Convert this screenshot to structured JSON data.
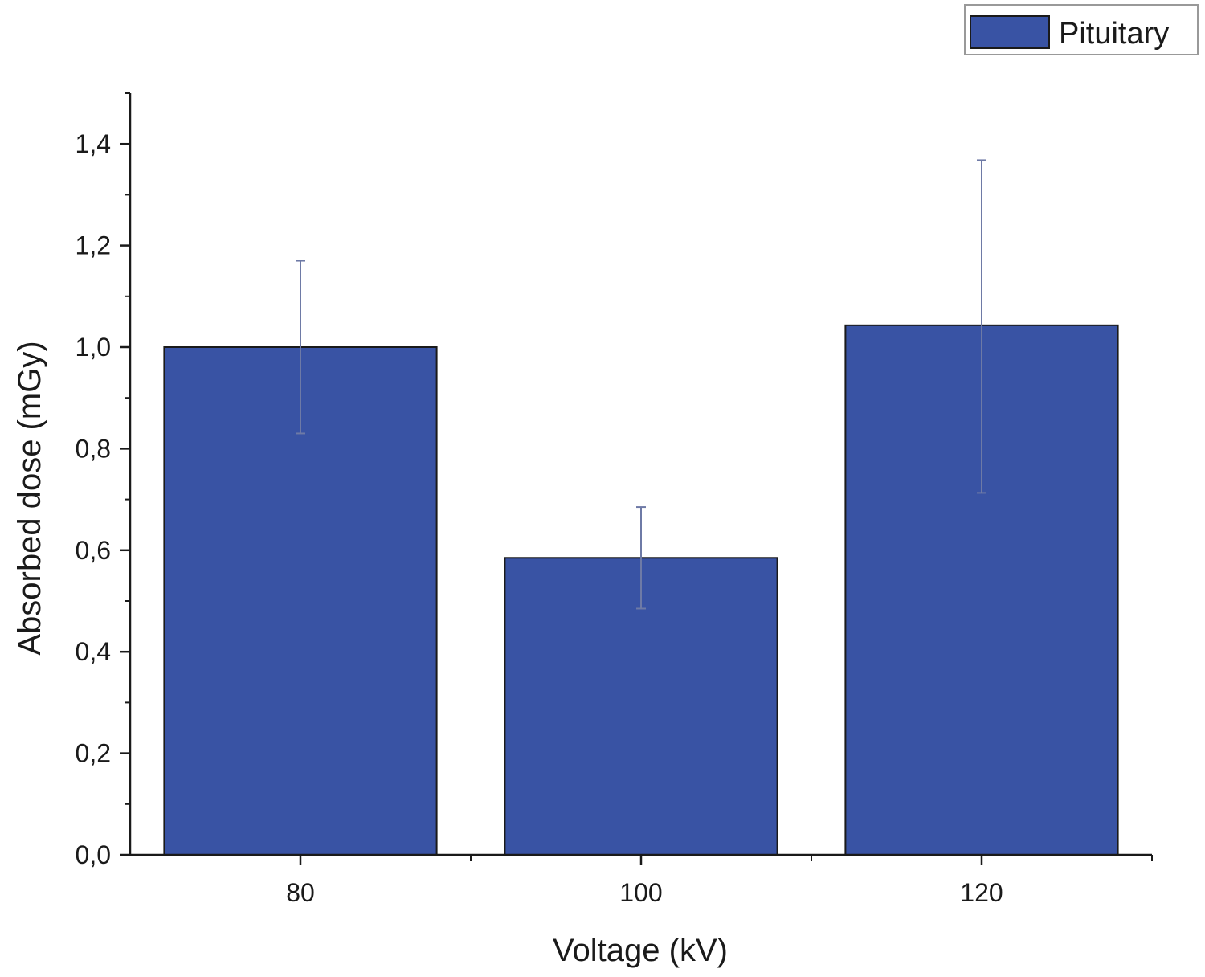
{
  "chart_data": {
    "type": "bar",
    "title": "",
    "categories": [
      "80",
      "100",
      "120"
    ],
    "series": [
      {
        "name": "Pituitary",
        "values": [
          1.0,
          0.585,
          1.043
        ],
        "error_upper": [
          0.17,
          0.1,
          0.325
        ],
        "error_lower": [
          0.17,
          0.1,
          0.33
        ],
        "color": "#3953a4"
      }
    ],
    "xlabel": "Voltage (kV)",
    "ylabel": "Absorbed dose (mGy)",
    "ylim": [
      0,
      1.5
    ],
    "yticks": [
      {
        "value": 0.0,
        "label": "0,0"
      },
      {
        "value": 0.2,
        "label": "0,2"
      },
      {
        "value": 0.4,
        "label": "0,4"
      },
      {
        "value": 0.6,
        "label": "0,6"
      },
      {
        "value": 0.8,
        "label": "0,8"
      },
      {
        "value": 1.0,
        "label": "1,0"
      },
      {
        "value": 1.2,
        "label": "1,2"
      },
      {
        "value": 1.4,
        "label": "1,4"
      }
    ],
    "legend": {
      "position": "top-right",
      "entries": [
        "Pituitary"
      ]
    },
    "grid": false
  }
}
